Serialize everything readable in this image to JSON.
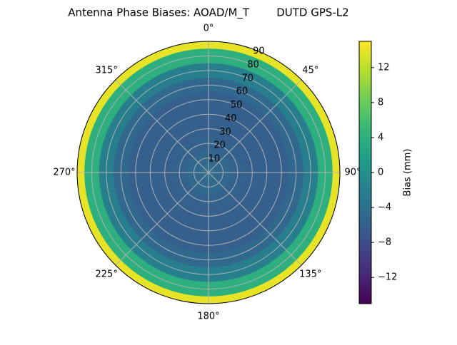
{
  "chart_data": {
    "type": "polar-contour",
    "title": "Antenna Phase Biases: AOAD/M_T        DUTD GPS-L2",
    "theta_ticks": [
      {
        "value": 0,
        "label": "0°"
      },
      {
        "value": 45,
        "label": "45°"
      },
      {
        "value": 90,
        "label": "90°"
      },
      {
        "value": 135,
        "label": "135°"
      },
      {
        "value": 180,
        "label": "180°"
      },
      {
        "value": 225,
        "label": "225°"
      },
      {
        "value": 270,
        "label": "270°"
      },
      {
        "value": 315,
        "label": "315°"
      }
    ],
    "rlim": [
      0,
      90
    ],
    "rticks": [
      10,
      20,
      30,
      40,
      50,
      60,
      70,
      80,
      90
    ],
    "r": [
      0,
      10,
      20,
      30,
      40,
      50,
      60,
      70,
      80,
      90
    ],
    "values": [
      -4,
      -5,
      -5.5,
      -6,
      -6,
      -6,
      -5,
      -2,
      4,
      14
    ],
    "colormap": "viridis",
    "clim": [
      -15,
      15
    ],
    "colorbar_label": "Bias (mm)",
    "colorbar_ticks": [
      {
        "value": -12,
        "label": "−12"
      },
      {
        "value": -8,
        "label": "−8"
      },
      {
        "value": -4,
        "label": "−4"
      },
      0,
      4,
      8,
      12
    ],
    "grid": true
  }
}
